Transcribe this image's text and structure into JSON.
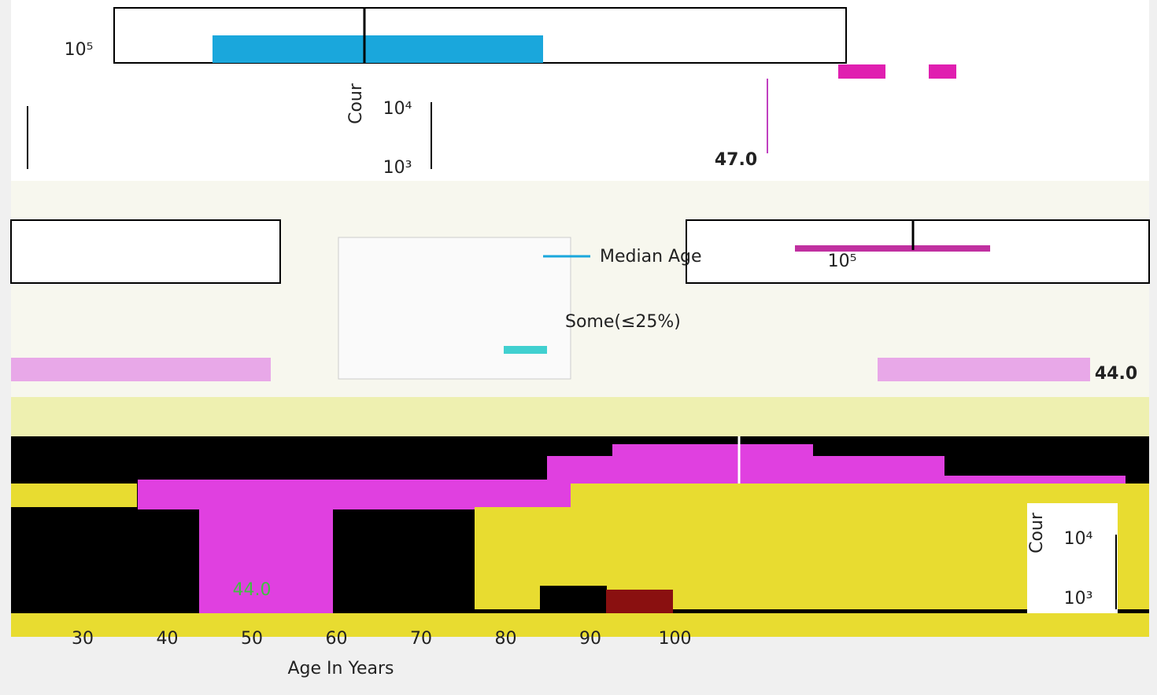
{
  "top_panel": {
    "y_ticks": [
      "10⁵",
      "10⁴",
      "10³"
    ],
    "y_label": "Cour",
    "annotation": "47.0"
  },
  "middle_panel": {
    "legend": [
      "Median Age",
      "Some(≤25%)"
    ],
    "y_tick": "10⁵",
    "annotation": "44.0"
  },
  "bottom_panel": {
    "annotation": "44.0",
    "x_ticks": [
      "30",
      "40",
      "50",
      "60",
      "70",
      "80",
      "90",
      "100"
    ],
    "x_label": "Age In Years",
    "y_label": "Cour",
    "y_ticks": [
      "10⁴",
      "10³"
    ]
  }
}
